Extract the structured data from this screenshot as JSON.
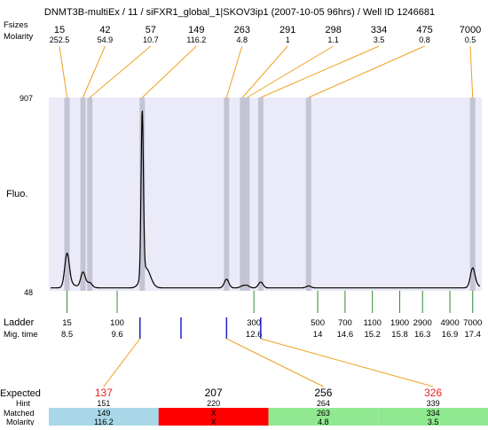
{
  "header": {
    "title": "DNMT3B-multiEx / 11 / siFXR1_global_1|SKOV3ip1 (2007-10-05 96hrs) / Well ID 1246681",
    "row_label_top": "Fsizes",
    "row_label_molarity": "Molarity"
  },
  "peaks": [
    {
      "size": "15",
      "molarity": "252.5",
      "time": 8.5,
      "height": 0.165,
      "highlight": true
    },
    {
      "size": "42",
      "molarity": "54.9",
      "time": 8.85,
      "height": 0.075,
      "highlight": true
    },
    {
      "size": "57",
      "molarity": "10.7",
      "time": 9.0,
      "height": 0.02,
      "highlight": true
    },
    {
      "size": "149",
      "molarity": "116.2",
      "time": 10.15,
      "height": 0.85,
      "highlight": true
    },
    {
      "size": "263",
      "molarity": "4.8",
      "time": 12.0,
      "height": 0.045,
      "highlight": true
    },
    {
      "size": "291",
      "molarity": "1",
      "time": 12.35,
      "height": 0.01,
      "highlight": true
    },
    {
      "size": "298",
      "molarity": "1.1",
      "time": 12.45,
      "height": 0.012,
      "highlight": true
    },
    {
      "size": "334",
      "molarity": "3.5",
      "time": 12.75,
      "height": 0.03,
      "highlight": true
    },
    {
      "size": "475",
      "molarity": "0.8",
      "time": 13.8,
      "height": 0.01,
      "highlight": true
    },
    {
      "size": "7000",
      "molarity": "0.5",
      "time": 17.4,
      "height": 0.095,
      "highlight": true
    }
  ],
  "chart_data": {
    "type": "line",
    "title": "DNMT3B-multiEx / 11 / siFXR1_global_1|SKOV3ip1 (2007-10-05 96hrs) / Well ID 1246681",
    "ylabel": "Fluo.",
    "ylim": [
      48,
      907
    ],
    "y_ticks": [
      "907",
      "48"
    ],
    "xlim": [
      8.1,
      17.6
    ],
    "baseline": 48,
    "ladder_label": "Ladder",
    "time_label": "Mig. time",
    "ladder": [
      {
        "size": "15",
        "time": 8.5
      },
      {
        "size": "100",
        "time": 9.6
      },
      {
        "size": "300",
        "time": 12.6
      },
      {
        "size": "500",
        "time": 14
      },
      {
        "size": "700",
        "time": 14.6
      },
      {
        "size": "1100",
        "time": 15.2
      },
      {
        "size": "1900",
        "time": 15.8
      },
      {
        "size": "2900",
        "time": 16.3
      },
      {
        "size": "4900",
        "time": 16.9
      },
      {
        "size": "7000",
        "time": 17.4
      }
    ],
    "expected_marker_times": [
      10.1,
      11.0,
      12.0,
      12.75
    ]
  },
  "expected": {
    "row_label_expected": "Expected",
    "row_label_hint": "Hint",
    "row_label_matched": "Matched",
    "row_label_molarity": "Molarity",
    "colors": {
      "expected_text": "#e8201c",
      "expected_text_normal": "#000000",
      "line": "#f0a020",
      "match_ok": "#90e890",
      "match_ok_blue": "#a8d8e8",
      "match_miss": "#ff0000"
    },
    "columns": [
      {
        "expected": "137",
        "expected_red": true,
        "hint": "151",
        "matched": "149",
        "molarity": "116.2",
        "status": "blue"
      },
      {
        "expected": "207",
        "expected_red": false,
        "hint": "220",
        "matched": "X",
        "molarity": "X",
        "status": "red"
      },
      {
        "expected": "256",
        "expected_red": false,
        "hint": "264",
        "matched": "263",
        "molarity": "4.8",
        "status": "green"
      },
      {
        "expected": "326",
        "expected_red": true,
        "hint": "339",
        "matched": "334",
        "molarity": "3.5",
        "status": "green"
      }
    ]
  }
}
